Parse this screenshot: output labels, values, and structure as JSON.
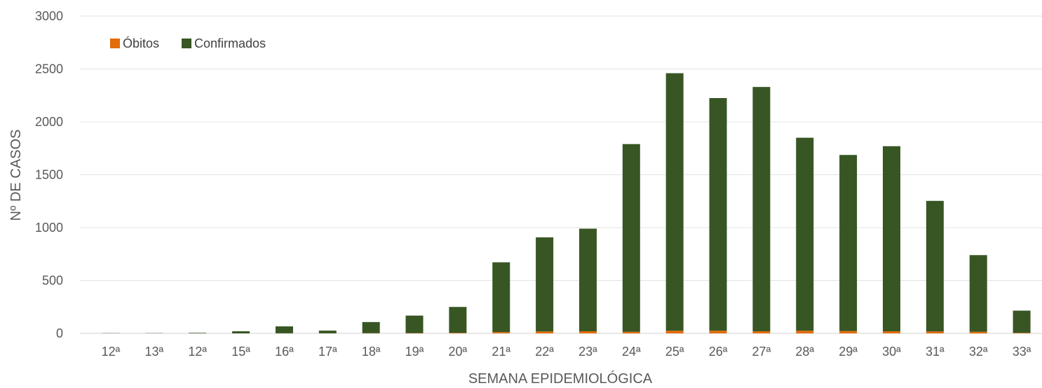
{
  "chart_data": {
    "type": "bar",
    "stacked": true,
    "xlabel": "SEMANA EPIDEMIOLÓGICA",
    "ylabel": "Nº DE CASOS",
    "ylim": [
      0,
      3000
    ],
    "yticks": [
      0,
      500,
      1000,
      1500,
      2000,
      2500,
      3000
    ],
    "grid": true,
    "legend_position": "top-left",
    "categories": [
      "12ª",
      "13ª",
      "12ª",
      "15ª",
      "16ª",
      "17ª",
      "18ª",
      "19ª",
      "20ª",
      "21ª",
      "22ª",
      "23ª",
      "24ª",
      "25ª",
      "26ª",
      "27ª",
      "28ª",
      "29ª",
      "30ª",
      "31ª",
      "32ª",
      "33ª"
    ],
    "series": [
      {
        "name": "Óbitos",
        "color": "#e36c0a",
        "values": [
          0,
          0,
          0,
          0,
          1,
          1,
          2,
          3,
          5,
          12,
          18,
          20,
          15,
          25,
          25,
          20,
          25,
          22,
          20,
          18,
          15,
          5
        ]
      },
      {
        "name": "Confirmados",
        "color": "#375623",
        "values": [
          2,
          2,
          5,
          20,
          65,
          25,
          105,
          165,
          245,
          660,
          890,
          970,
          1775,
          2435,
          2200,
          2310,
          1825,
          1665,
          1750,
          1235,
          725,
          210
        ]
      }
    ]
  }
}
